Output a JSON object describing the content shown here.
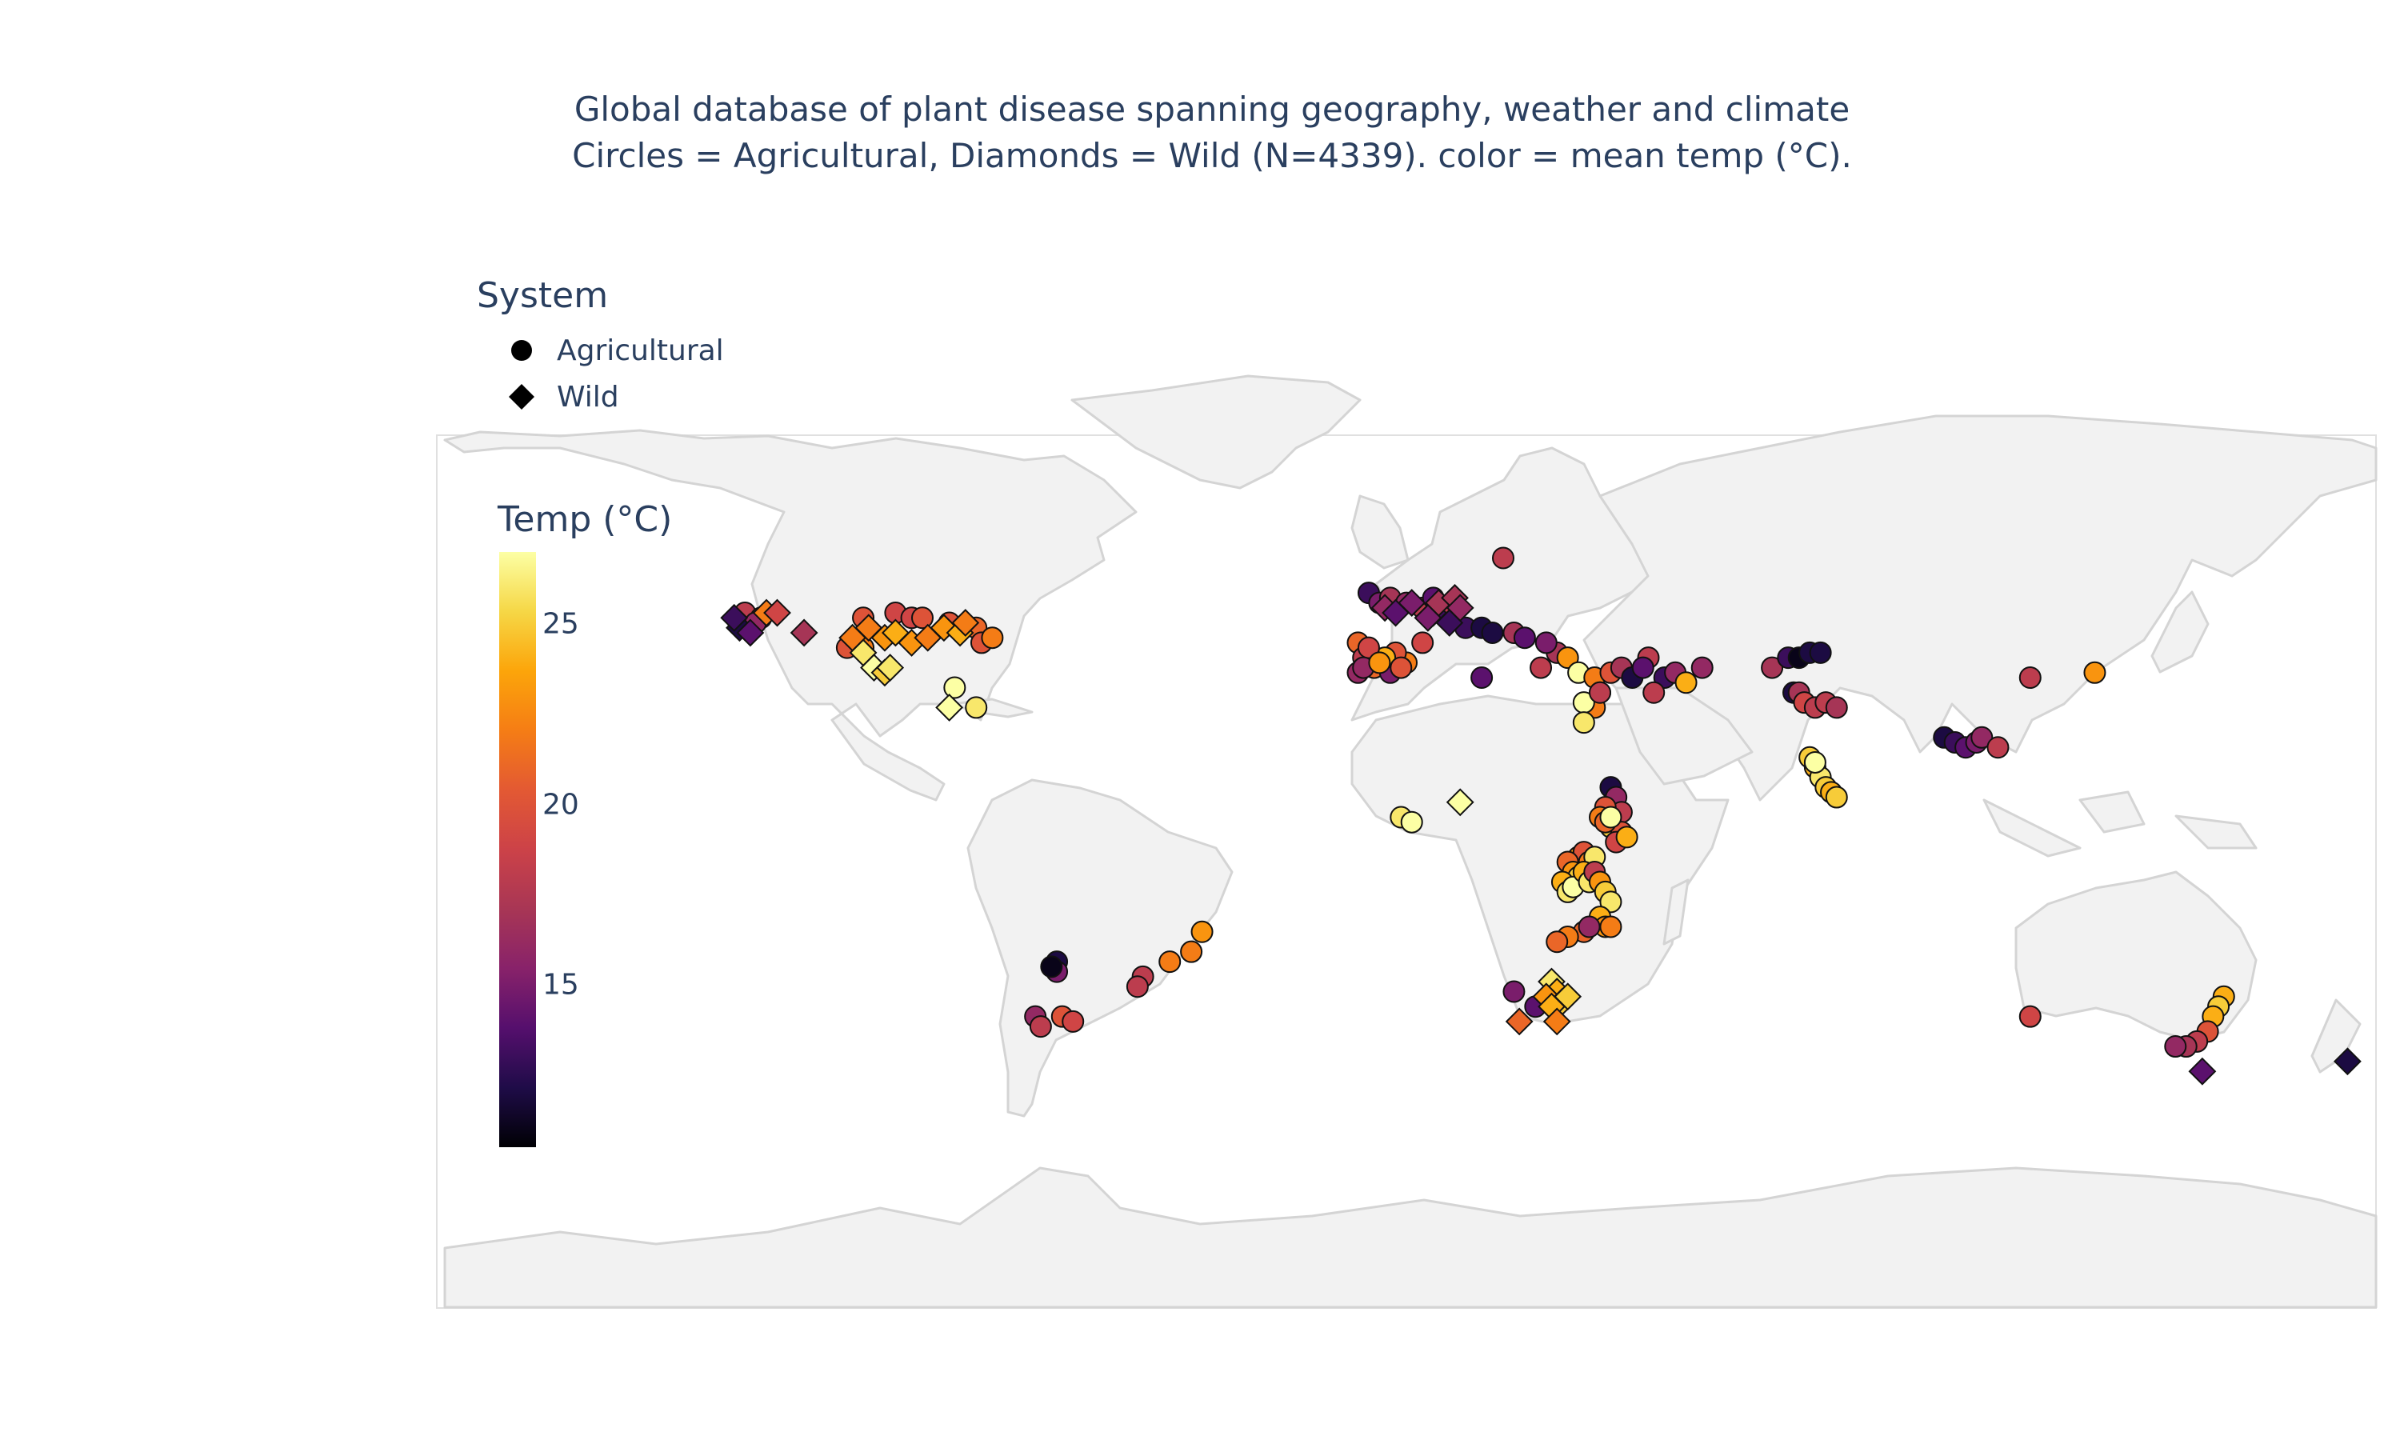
{
  "title": {
    "line1": "Global database of plant disease spanning geography, weather and climate",
    "line2": "Circles = Agricultural, Diamonds = Wild (N=4339). color = mean temp (°C)."
  },
  "legend": {
    "title": "System",
    "items": [
      {
        "label": "Agricultural",
        "symbol": "circle"
      },
      {
        "label": "Wild",
        "symbol": "diamond"
      }
    ]
  },
  "colorbar": {
    "title": "Temp (°C)",
    "colorscale": "Inferno",
    "ticks": [
      {
        "value": 15,
        "label": "15"
      },
      {
        "value": 20,
        "label": "20"
      },
      {
        "value": 25,
        "label": "25"
      }
    ],
    "range": [
      10.5,
      27
    ]
  },
  "colors": {
    "land": "#f2f2f2",
    "coast": "#d4d4d4",
    "marker_outline": "#111111"
  },
  "chart_data": {
    "type": "scatter",
    "projection": "equirectangular",
    "lon_range": [
      -180,
      180
    ],
    "lat_range": [
      -90,
      84
    ],
    "series": [
      {
        "name": "Agricultural",
        "symbol": "circle",
        "points": [
          [
            -123,
            49,
            18
          ],
          [
            -120,
            48,
            19
          ],
          [
            -121,
            47,
            16
          ],
          [
            -101,
            48,
            20
          ],
          [
            -95,
            49,
            19
          ],
          [
            -92,
            48,
            19
          ],
          [
            -90,
            48,
            20
          ],
          [
            -85,
            47,
            20
          ],
          [
            -104,
            42,
            20
          ],
          [
            -101,
            42,
            22
          ],
          [
            -80,
            46,
            21
          ],
          [
            -79,
            43,
            20
          ],
          [
            -77,
            44,
            22
          ],
          [
            -80,
            30,
            26
          ],
          [
            -84,
            34,
            28
          ],
          [
            -7,
            53,
            13
          ],
          [
            -5,
            51,
            15
          ],
          [
            -3,
            52,
            17
          ],
          [
            0,
            51,
            16
          ],
          [
            3,
            50,
            18
          ],
          [
            5,
            52,
            14
          ],
          [
            8,
            48,
            18
          ],
          [
            11,
            46,
            13
          ],
          [
            14,
            46,
            12
          ],
          [
            16,
            45,
            12
          ],
          [
            18,
            60,
            18
          ],
          [
            20,
            45,
            17
          ],
          [
            22,
            44,
            14
          ],
          [
            -9,
            43,
            21
          ],
          [
            -8,
            40,
            18
          ],
          [
            -6,
            38,
            21
          ],
          [
            -9,
            37,
            16
          ],
          [
            -3,
            37,
            15
          ],
          [
            0,
            39,
            22
          ],
          [
            -2,
            41,
            20
          ],
          [
            -4,
            40,
            24
          ],
          [
            -7,
            42,
            19
          ],
          [
            3,
            43,
            19
          ],
          [
            -8,
            38,
            16
          ],
          [
            -5,
            39,
            23
          ],
          [
            -1,
            38,
            20
          ],
          [
            14,
            36,
            14
          ],
          [
            25,
            38,
            18
          ],
          [
            28,
            41,
            17
          ],
          [
            26,
            43,
            15
          ],
          [
            30,
            40,
            23
          ],
          [
            32,
            37,
            28
          ],
          [
            35,
            36,
            22
          ],
          [
            38,
            37,
            20
          ],
          [
            40,
            38,
            17
          ],
          [
            42,
            36,
            12
          ],
          [
            45,
            40,
            18
          ],
          [
            36,
            33,
            20
          ],
          [
            44,
            38,
            14
          ],
          [
            48,
            36,
            13
          ],
          [
            50,
            37,
            16
          ],
          [
            52,
            35,
            24
          ],
          [
            55,
            38,
            16
          ],
          [
            46,
            33,
            18
          ],
          [
            35,
            30,
            22
          ],
          [
            33,
            31,
            27
          ],
          [
            33,
            27,
            26
          ],
          [
            36,
            33,
            18
          ],
          [
            68,
            38,
            17
          ],
          [
            71,
            40,
            13
          ],
          [
            73,
            40,
            11
          ],
          [
            75,
            41,
            12
          ],
          [
            77,
            41,
            12
          ],
          [
            72,
            33,
            12
          ],
          [
            73,
            33,
            17
          ],
          [
            74,
            31,
            19
          ],
          [
            76,
            30,
            18
          ],
          [
            78,
            31,
            18
          ],
          [
            80,
            30,
            17
          ],
          [
            100,
            24,
            12
          ],
          [
            102,
            23,
            13
          ],
          [
            104,
            22,
            14
          ],
          [
            106,
            23,
            15
          ],
          [
            107,
            24,
            16
          ],
          [
            110,
            22,
            18
          ],
          [
            116,
            36,
            18
          ],
          [
            128,
            37,
            23
          ],
          [
            75,
            20,
            25
          ],
          [
            76,
            18,
            24
          ],
          [
            77,
            16,
            26
          ],
          [
            78,
            14,
            25
          ],
          [
            79,
            13,
            24
          ],
          [
            80,
            12,
            25
          ],
          [
            76,
            19,
            27
          ],
          [
            -1,
            8,
            26
          ],
          [
            1,
            7,
            27
          ],
          [
            38,
            14,
            12
          ],
          [
            39,
            12,
            16
          ],
          [
            40,
            9,
            18
          ],
          [
            37,
            10,
            20
          ],
          [
            36,
            8,
            22
          ],
          [
            38,
            6,
            25
          ],
          [
            40,
            5,
            20
          ],
          [
            39,
            3,
            19
          ],
          [
            41,
            4,
            24
          ],
          [
            37,
            7,
            21
          ],
          [
            38,
            8,
            27
          ],
          [
            32,
            0,
            23
          ],
          [
            33,
            1,
            20
          ],
          [
            34,
            -1,
            22
          ],
          [
            35,
            0,
            26
          ],
          [
            30,
            -1,
            21
          ],
          [
            31,
            -3,
            23
          ],
          [
            32,
            -4,
            25
          ],
          [
            29,
            -5,
            24
          ],
          [
            30,
            -7,
            26
          ],
          [
            31,
            -6,
            27
          ],
          [
            33,
            -3,
            24
          ],
          [
            34,
            -5,
            26
          ],
          [
            35,
            -3,
            18
          ],
          [
            36,
            -5,
            23
          ],
          [
            37,
            -7,
            25
          ],
          [
            38,
            -9,
            26
          ],
          [
            36,
            -12,
            24
          ],
          [
            37,
            -14,
            23
          ],
          [
            38,
            -14,
            22
          ],
          [
            33,
            -15,
            21
          ],
          [
            34,
            -14,
            16
          ],
          [
            30,
            -16,
            22
          ],
          [
            28,
            -17,
            21
          ],
          [
            24,
            -30,
            14
          ],
          [
            20,
            -27,
            15
          ],
          [
            -65,
            -21,
            12
          ],
          [
            -65,
            -23,
            15
          ],
          [
            -66,
            -22,
            11
          ],
          [
            -44,
            -21,
            22
          ],
          [
            -40,
            -19,
            22
          ],
          [
            -38,
            -15,
            23
          ],
          [
            -49,
            -24,
            18
          ],
          [
            -50,
            -26,
            18
          ],
          [
            -69,
            -32,
            16
          ],
          [
            -68,
            -34,
            18
          ],
          [
            -64,
            -32,
            20
          ],
          [
            -62,
            -33,
            19
          ],
          [
            152,
            -28,
            24
          ],
          [
            151,
            -30,
            25
          ],
          [
            150,
            -32,
            24
          ],
          [
            149,
            -35,
            20
          ],
          [
            147,
            -37,
            18
          ],
          [
            145,
            -38,
            17
          ],
          [
            143,
            -38,
            16
          ],
          [
            116,
            -32,
            19
          ]
        ]
      },
      {
        "name": "Wild",
        "symbol": "diamond",
        "points": [
          [
            -124,
            46,
            12
          ],
          [
            -122,
            45,
            14
          ],
          [
            -125,
            48,
            13
          ],
          [
            -119,
            49,
            22
          ],
          [
            -117,
            49,
            19
          ],
          [
            -112,
            45,
            17
          ],
          [
            -103,
            44,
            22
          ],
          [
            -100,
            46,
            22
          ],
          [
            -97,
            44,
            23
          ],
          [
            -95,
            45,
            24
          ],
          [
            -92,
            43,
            23
          ],
          [
            -89,
            44,
            22
          ],
          [
            -86,
            46,
            23
          ],
          [
            -83,
            45,
            24
          ],
          [
            -82,
            47,
            22
          ],
          [
            -101,
            41,
            26
          ],
          [
            -99,
            38,
            27
          ],
          [
            -97,
            37,
            25
          ],
          [
            -96,
            38,
            26
          ],
          [
            -85,
            30,
            27
          ],
          [
            -4,
            50,
            16
          ],
          [
            -2,
            49,
            14
          ],
          [
            1,
            51,
            15
          ],
          [
            5,
            49,
            13
          ],
          [
            6,
            51,
            17
          ],
          [
            9,
            52,
            17
          ],
          [
            10,
            50,
            16
          ],
          [
            4,
            48,
            15
          ],
          [
            8,
            47,
            13
          ],
          [
            10,
            11,
            27
          ],
          [
            27,
            -25,
            26
          ],
          [
            28,
            -27,
            24
          ],
          [
            26,
            -28,
            23
          ],
          [
            29,
            -29,
            25
          ],
          [
            30,
            -28,
            25
          ],
          [
            27,
            -30,
            24
          ],
          [
            21,
            -33,
            21
          ],
          [
            28,
            -33,
            22
          ],
          [
            148,
            -43,
            14
          ],
          [
            175,
            -41,
            12
          ]
        ]
      }
    ]
  }
}
